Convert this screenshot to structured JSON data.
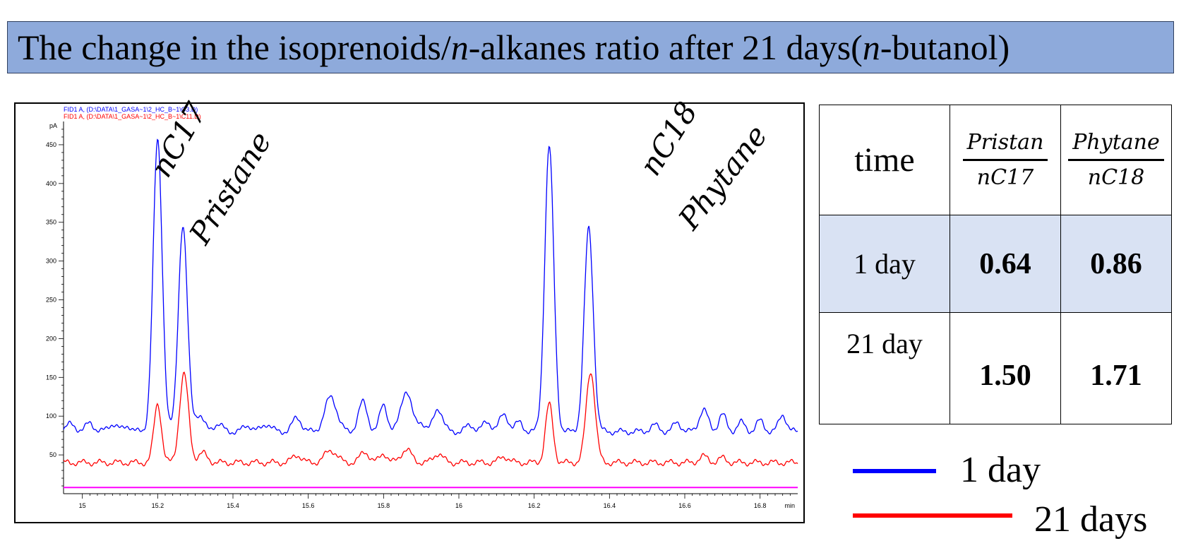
{
  "title": {
    "part1": "The change in the isoprenoids/",
    "italic1": "n",
    "part2": "-alkanes ratio after 21 days(",
    "italic2": "n",
    "part3": "-butanol)"
  },
  "peak_labels": {
    "nC17": "nC17",
    "pristane": "Pristane",
    "nC18": "nC18",
    "phytane": "Phytane"
  },
  "chart_data": {
    "type": "line",
    "header_lines": [
      "FID1 A,  (D:\\DATA\\1_GASA~1\\2_HC_B~1\\C3.D)",
      "FID1 A,  (D:\\DATA\\1_GASA~1\\2_HC_B~1\\C11.D)"
    ],
    "ylabel": "pA",
    "xlabel": "min",
    "xlim": [
      14.95,
      16.9
    ],
    "ylim": [
      0,
      480
    ],
    "x_ticks": [
      15,
      15.2,
      15.4,
      15.6,
      15.8,
      16,
      16.2,
      16.4,
      16.6,
      16.8
    ],
    "x_tick_labels": [
      "15",
      "15.2",
      "15.4",
      "15.6",
      "15.8",
      "16",
      "16.2",
      "16.4",
      "16.6",
      "16.8"
    ],
    "y_ticks": [
      50,
      100,
      150,
      200,
      250,
      300,
      350,
      400,
      450
    ],
    "y_tick_labels": [
      "50",
      "100",
      "150",
      "200",
      "250",
      "300",
      "350",
      "400",
      "450"
    ],
    "series": [
      {
        "name": "1 day",
        "color": "#0000ff",
        "baseline": 80,
        "peaks": [
          [
            14.97,
            10,
            0.012
          ],
          [
            15.02,
            12,
            0.01
          ],
          [
            15.08,
            10,
            0.012
          ],
          [
            15.12,
            8,
            0.01
          ],
          [
            15.2,
            376,
            0.012
          ],
          [
            15.267,
            267,
            0.012
          ],
          [
            15.31,
            22,
            0.012
          ],
          [
            15.36,
            10,
            0.012
          ],
          [
            15.44,
            8,
            0.012
          ],
          [
            15.49,
            10,
            0.012
          ],
          [
            15.57,
            18,
            0.012
          ],
          [
            15.66,
            45,
            0.016
          ],
          [
            15.745,
            38,
            0.012
          ],
          [
            15.8,
            35,
            0.01
          ],
          [
            15.86,
            53,
            0.014
          ],
          [
            15.9,
            12,
            0.01
          ],
          [
            15.945,
            30,
            0.012
          ],
          [
            16.03,
            8,
            0.012
          ],
          [
            16.075,
            12,
            0.012
          ],
          [
            16.12,
            22,
            0.012
          ],
          [
            16.16,
            12,
            0.01
          ],
          [
            16.24,
            368,
            0.012
          ],
          [
            16.345,
            262,
            0.012
          ],
          [
            16.52,
            8,
            0.012
          ],
          [
            16.58,
            12,
            0.01
          ],
          [
            16.65,
            28,
            0.012
          ],
          [
            16.7,
            22,
            0.01
          ],
          [
            16.75,
            12,
            0.01
          ],
          [
            16.8,
            14,
            0.01
          ],
          [
            16.86,
            22,
            0.01
          ]
        ]
      },
      {
        "name": "21 days",
        "color": "#ff0000",
        "baseline": 40,
        "peaks": [
          [
            15.2,
            76,
            0.01
          ],
          [
            15.27,
            114,
            0.012
          ],
          [
            15.32,
            12,
            0.012
          ],
          [
            15.57,
            10,
            0.012
          ],
          [
            15.66,
            16,
            0.016
          ],
          [
            15.75,
            14,
            0.012
          ],
          [
            15.8,
            12,
            0.01
          ],
          [
            15.86,
            17,
            0.014
          ],
          [
            15.945,
            12,
            0.012
          ],
          [
            16.12,
            8,
            0.012
          ],
          [
            16.24,
            75,
            0.01
          ],
          [
            16.35,
            118,
            0.012
          ],
          [
            16.65,
            8,
            0.012
          ],
          [
            16.7,
            6,
            0.01
          ]
        ]
      },
      {
        "name": "baseline",
        "color": "#ff00ff",
        "flat": 8
      }
    ]
  },
  "table": {
    "header": {
      "time": "time",
      "pristane_ratio_num": "Pristan",
      "pristane_ratio_den": "nC17",
      "phytane_ratio_num": "Phytane",
      "phytane_ratio_den": "nC18"
    },
    "rows": [
      {
        "time": "1 day",
        "pristane": "0.64",
        "phytane": "0.86"
      },
      {
        "time": "21 day",
        "pristane": "1.50",
        "phytane": "1.71"
      }
    ]
  },
  "legend": [
    {
      "label": "1 day",
      "color": "#0000ff"
    },
    {
      "label": "21 days",
      "color": "#ff0000"
    }
  ]
}
